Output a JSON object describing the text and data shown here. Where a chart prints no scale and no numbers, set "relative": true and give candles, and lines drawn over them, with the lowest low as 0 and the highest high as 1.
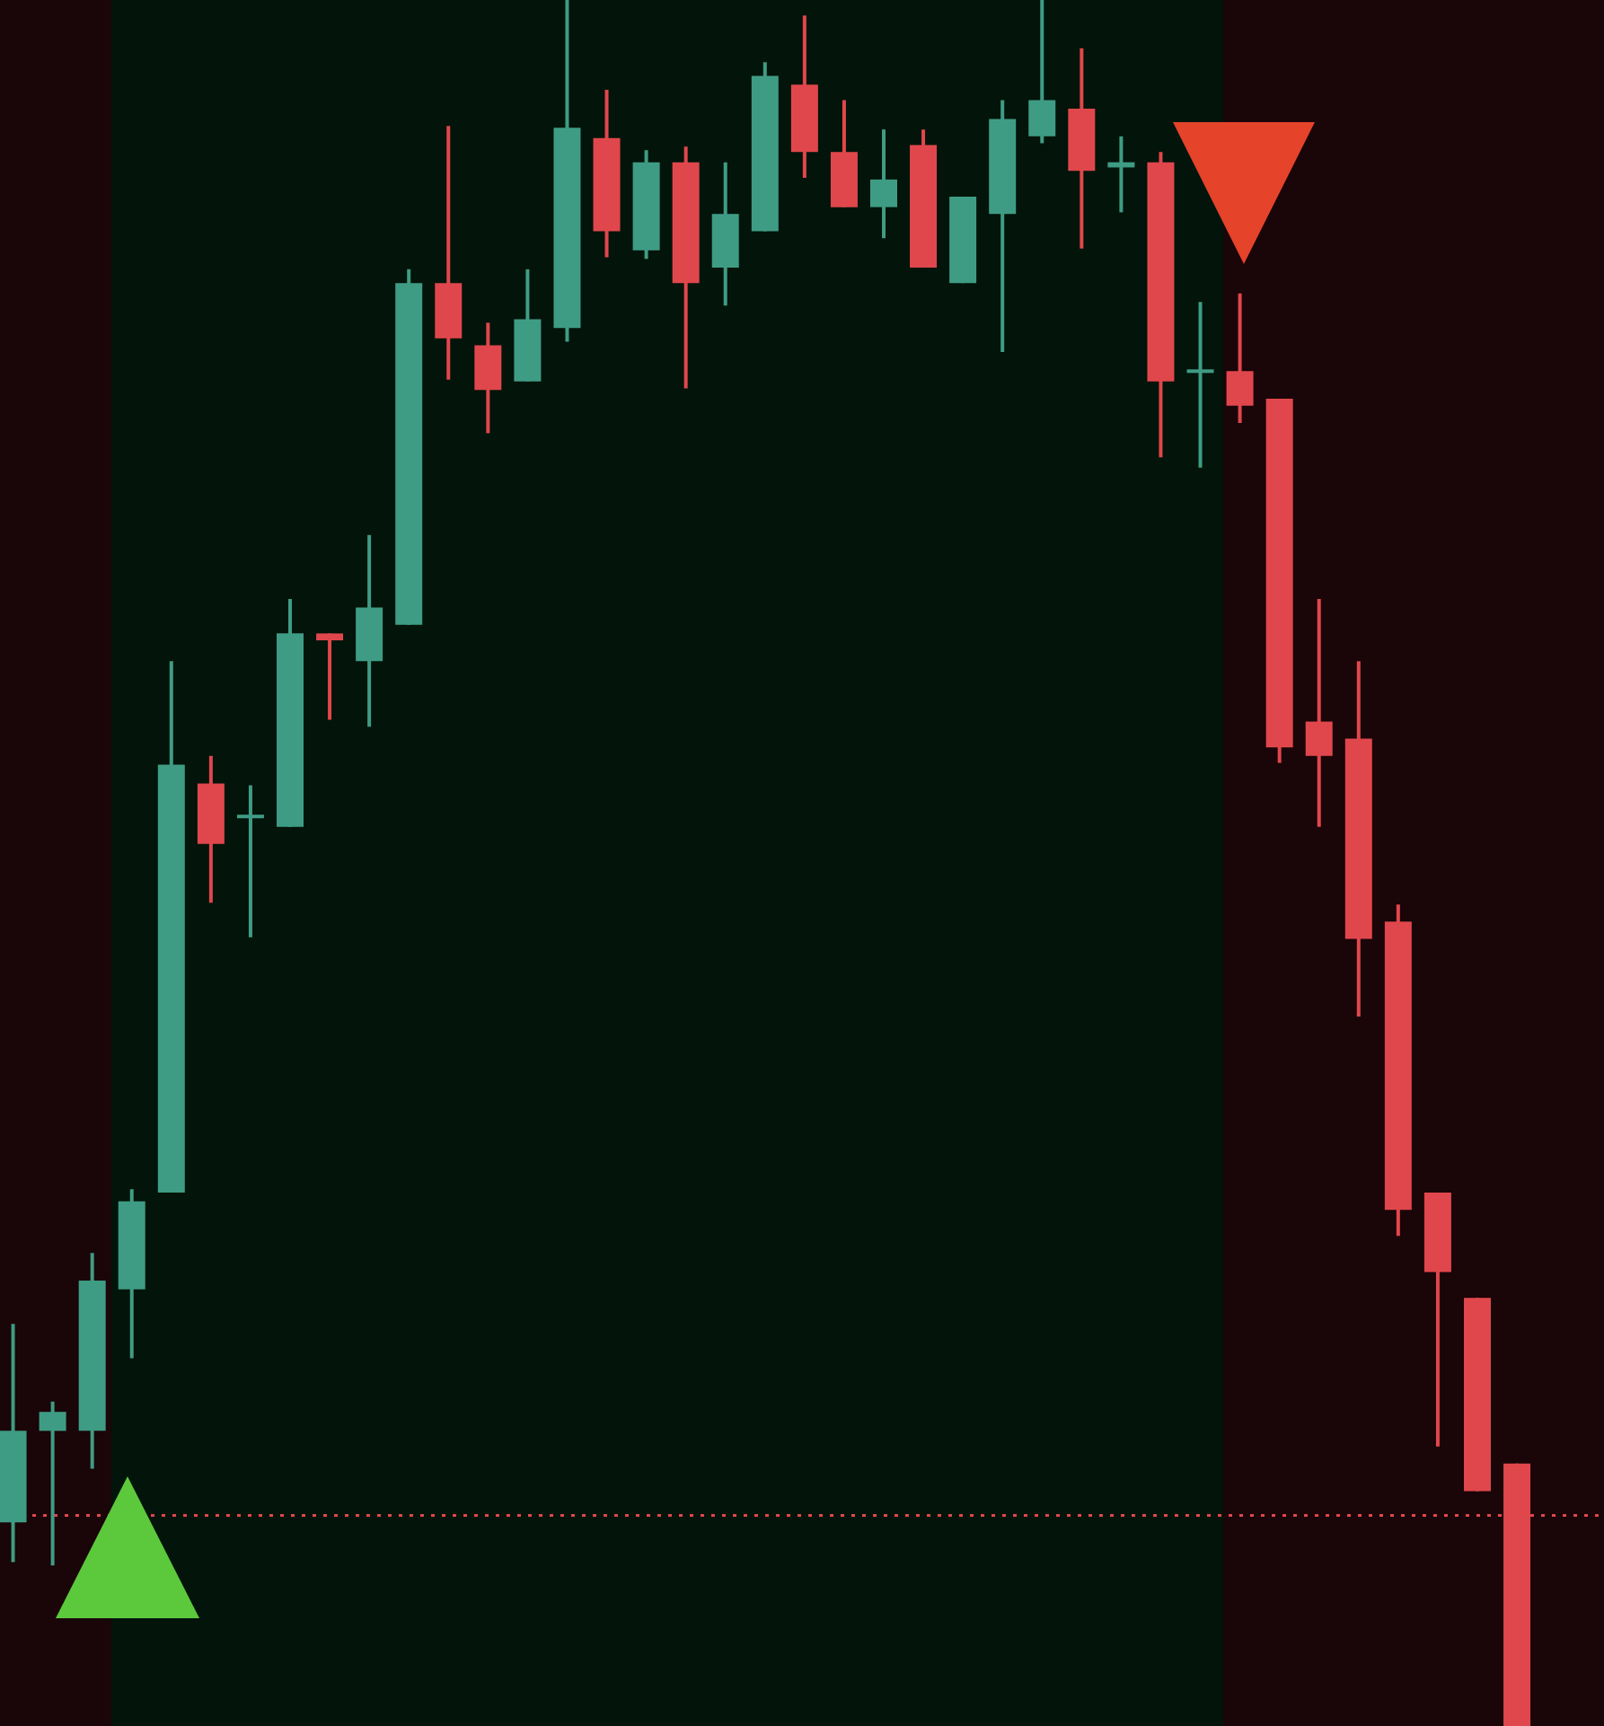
{
  "chart_data": {
    "type": "candlestick",
    "relative": true,
    "categories": [
      null,
      null,
      null,
      null,
      null,
      null,
      null,
      null,
      null,
      null,
      null,
      null,
      null,
      null,
      null,
      null,
      null,
      null,
      null,
      null,
      null,
      null,
      null,
      null,
      null,
      null,
      null,
      null,
      null,
      null,
      null,
      null,
      null,
      null,
      null,
      null,
      null,
      null,
      null
    ],
    "ohlc": [
      [
        0.118,
        0.233,
        0.095,
        0.171
      ],
      [
        0.171,
        0.188,
        0.093,
        0.182
      ],
      [
        0.171,
        0.274,
        0.149,
        0.258
      ],
      [
        0.253,
        0.311,
        0.213,
        0.304
      ],
      [
        0.309,
        0.617,
        0.309,
        0.557
      ],
      [
        0.546,
        0.562,
        0.477,
        0.511
      ],
      [
        0.526,
        0.545,
        0.457,
        0.528
      ],
      [
        0.521,
        0.653,
        0.521,
        0.633
      ],
      [
        0.633,
        0.633,
        0.583,
        0.629
      ],
      [
        0.617,
        0.69,
        0.579,
        0.648
      ],
      [
        0.638,
        0.844,
        0.638,
        0.836
      ],
      [
        0.836,
        0.927,
        0.78,
        0.804
      ],
      [
        0.8,
        0.813,
        0.749,
        0.774
      ],
      [
        0.779,
        0.844,
        0.779,
        0.815
      ],
      [
        0.81,
        1,
        0.802,
        0.926
      ],
      [
        0.92,
        0.948,
        0.851,
        0.866
      ],
      [
        0.855,
        0.913,
        0.85,
        0.906
      ],
      [
        0.906,
        0.915,
        0.775,
        0.836
      ],
      [
        0.845,
        0.906,
        0.823,
        0.876
      ],
      [
        0.866,
        0.964,
        0.866,
        0.956
      ],
      [
        0.951,
        0.991,
        0.897,
        0.912
      ],
      [
        0.912,
        0.942,
        0.88,
        0.88
      ],
      [
        0.88,
        0.925,
        0.862,
        0.896
      ],
      [
        0.916,
        0.925,
        0.845,
        0.845
      ],
      [
        0.836,
        0.886,
        0.836,
        0.886
      ],
      [
        0.876,
        0.942,
        0.796,
        0.931
      ],
      [
        0.921,
        1,
        0.917,
        0.942
      ],
      [
        0.937,
        0.972,
        0.856,
        0.901
      ],
      [
        0.903,
        0.921,
        0.877,
        0.906
      ],
      [
        0.906,
        0.912,
        0.735,
        0.779
      ],
      [
        0.784,
        0.825,
        0.729,
        0.786
      ],
      [
        0.785,
        0.83,
        0.755,
        0.765
      ],
      [
        0.769,
        0.769,
        0.558,
        0.567
      ],
      [
        0.582,
        0.653,
        0.521,
        0.562
      ],
      [
        0.572,
        0.617,
        0.411,
        0.456
      ],
      [
        0.466,
        0.476,
        0.284,
        0.299
      ],
      [
        0.309,
        0.309,
        0.162,
        0.263
      ],
      [
        0.248,
        0.248,
        0.136,
        0.136
      ],
      [
        0.152,
        0.152,
        0,
        0
      ]
    ],
    "colors": [
      "#3f9c84",
      "#3f9c84",
      "#3f9c84",
      "#3f9c84",
      "#3f9c84",
      "#e0474c",
      "#3f9c84",
      "#3f9c84",
      "#e0474c",
      "#3f9c84",
      "#3f9c84",
      "#e0474c",
      "#e0474c",
      "#3f9c84",
      "#3f9c84",
      "#e0474c",
      "#3f9c84",
      "#e0474c",
      "#3f9c84",
      "#3f9c84",
      "#e0474c",
      "#e0474c",
      "#3f9c84",
      "#e0474c",
      "#3f9c84",
      "#3f9c84",
      "#3f9c84",
      "#e0474c",
      "#3f9c84",
      "#e0474c",
      "#3f9c84",
      "#e0474c",
      "#e0474c",
      "#e0474c",
      "#e0474c",
      "#e0474c",
      "#e0474c",
      "#e0474c",
      "#e0474c"
    ],
    "ref_lines": [
      {
        "axis": "y",
        "value": 0.122,
        "color": "#e0474c",
        "line_style": "dotted"
      }
    ]
  }
}
